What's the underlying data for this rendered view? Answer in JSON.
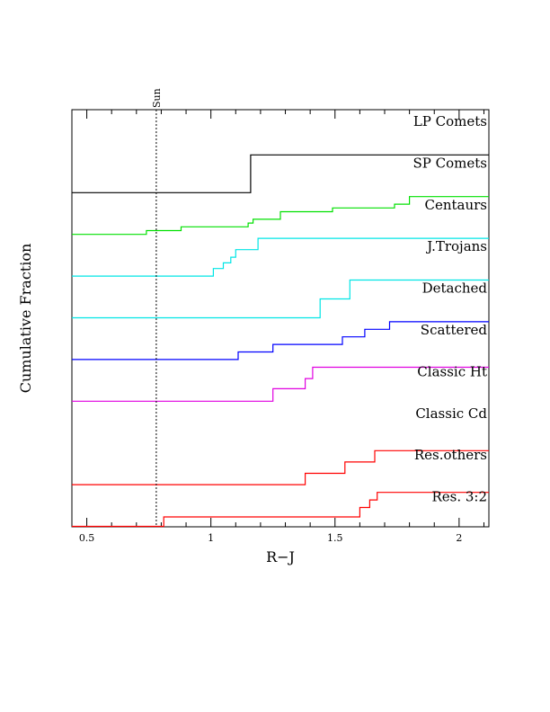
{
  "chart_data": {
    "type": "line",
    "subtype": "cumulative step curves (stacked, offset)",
    "xlabel": "R−J",
    "ylabel": "Cumulative Fraction",
    "xlim": [
      0.44,
      2.12
    ],
    "x_ticks": [
      0.5,
      1,
      1.5,
      2
    ],
    "x_tick_labels": [
      "0.5",
      "1",
      "1.5",
      "2"
    ],
    "reference_line": {
      "x": 0.78,
      "label": "Sun",
      "style": "dotted"
    },
    "series": [
      {
        "name": "LP Comets",
        "color": "#000000",
        "points": []
      },
      {
        "name": "SP Comets",
        "color": "#000000",
        "points": [
          [
            0.44,
            0.0
          ],
          [
            1.16,
            0.0
          ],
          [
            1.16,
            1.0
          ],
          [
            2.12,
            1.0
          ]
        ]
      },
      {
        "name": "Centaurs",
        "color": "#00e000",
        "points": [
          [
            0.44,
            0.0
          ],
          [
            0.74,
            0.0
          ],
          [
            0.74,
            0.1
          ],
          [
            0.88,
            0.1
          ],
          [
            0.88,
            0.2
          ],
          [
            1.15,
            0.2
          ],
          [
            1.15,
            0.3
          ],
          [
            1.17,
            0.3
          ],
          [
            1.17,
            0.4
          ],
          [
            1.28,
            0.4
          ],
          [
            1.28,
            0.6
          ],
          [
            1.49,
            0.6
          ],
          [
            1.49,
            0.7
          ],
          [
            1.74,
            0.7
          ],
          [
            1.74,
            0.8
          ],
          [
            1.8,
            0.8
          ],
          [
            1.8,
            1.0
          ],
          [
            2.12,
            1.0
          ]
        ]
      },
      {
        "name": "J.Trojans",
        "color": "#00e5e5",
        "points": [
          [
            0.44,
            0.0
          ],
          [
            1.01,
            0.0
          ],
          [
            1.01,
            0.2
          ],
          [
            1.05,
            0.2
          ],
          [
            1.05,
            0.35
          ],
          [
            1.08,
            0.35
          ],
          [
            1.08,
            0.5
          ],
          [
            1.1,
            0.5
          ],
          [
            1.1,
            0.7
          ],
          [
            1.19,
            0.7
          ],
          [
            1.19,
            1.0
          ],
          [
            2.12,
            1.0
          ]
        ]
      },
      {
        "name": "Detached",
        "color": "#00e5e5",
        "points": [
          [
            0.44,
            0.0
          ],
          [
            1.44,
            0.0
          ],
          [
            1.44,
            0.5
          ],
          [
            1.56,
            0.5
          ],
          [
            1.56,
            1.0
          ],
          [
            2.12,
            1.0
          ]
        ]
      },
      {
        "name": "Scattered",
        "color": "#0000ff",
        "points": [
          [
            0.44,
            0.0
          ],
          [
            1.11,
            0.0
          ],
          [
            1.11,
            0.2
          ],
          [
            1.25,
            0.2
          ],
          [
            1.25,
            0.4
          ],
          [
            1.53,
            0.4
          ],
          [
            1.53,
            0.6
          ],
          [
            1.62,
            0.6
          ],
          [
            1.62,
            0.8
          ],
          [
            1.72,
            0.8
          ],
          [
            1.72,
            1.0
          ],
          [
            2.12,
            1.0
          ]
        ]
      },
      {
        "name": "Classic Ht",
        "color": "#e000e0",
        "points": [
          [
            0.44,
            0.0
          ],
          [
            1.25,
            0.0
          ],
          [
            1.25,
            0.33
          ],
          [
            1.38,
            0.33
          ],
          [
            1.38,
            0.6
          ],
          [
            1.41,
            0.6
          ],
          [
            1.41,
            0.9
          ],
          [
            2.12,
            0.9
          ]
        ]
      },
      {
        "name": "Classic Cd",
        "color": "#000000",
        "points": []
      },
      {
        "name": "Res.others",
        "color": "#ff0000",
        "points": [
          [
            0.44,
            0.0
          ],
          [
            1.38,
            0.0
          ],
          [
            1.38,
            0.3
          ],
          [
            1.54,
            0.3
          ],
          [
            1.54,
            0.6
          ],
          [
            1.66,
            0.6
          ],
          [
            1.66,
            0.9
          ],
          [
            2.12,
            0.9
          ]
        ]
      },
      {
        "name": "Res. 3:2",
        "color": "#ff0000",
        "points": [
          [
            0.44,
            0.0
          ],
          [
            0.81,
            0.0
          ],
          [
            0.81,
            0.25
          ],
          [
            1.6,
            0.25
          ],
          [
            1.6,
            0.5
          ],
          [
            1.64,
            0.5
          ],
          [
            1.64,
            0.7
          ],
          [
            1.67,
            0.7
          ],
          [
            1.67,
            0.9
          ],
          [
            2.12,
            0.9
          ]
        ]
      }
    ]
  }
}
